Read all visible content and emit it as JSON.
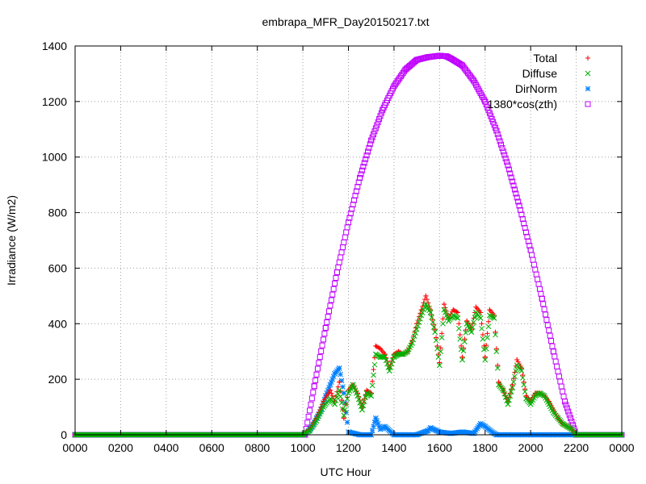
{
  "chart_data": {
    "type": "scatter",
    "title": "embrapa_MFR_Day20150217.txt",
    "xlabel": "UTC Hour",
    "ylabel": "Irradiance (W/m2)",
    "xlim": [
      0,
      24
    ],
    "ylim": [
      0,
      1400
    ],
    "x_ticks": [
      0,
      2,
      4,
      6,
      8,
      10,
      12,
      14,
      16,
      18,
      20,
      22,
      24
    ],
    "x_tick_labels": [
      "0000",
      "0200",
      "0400",
      "0600",
      "0800",
      "1000",
      "1200",
      "1400",
      "1600",
      "1800",
      "2000",
      "2200",
      "0000"
    ],
    "y_ticks": [
      0,
      200,
      400,
      600,
      800,
      1000,
      1200,
      1400
    ],
    "y_tick_labels": [
      "0",
      "200",
      "400",
      "600",
      "800",
      "1000",
      "1200",
      "1400"
    ],
    "grid": true,
    "legend_position": "top-right",
    "series": [
      {
        "name": "Total",
        "color": "#ff0000",
        "marker": "plus",
        "x": [
          0,
          10.0,
          10.3,
          10.6,
          10.9,
          11.2,
          11.4,
          11.6,
          11.8,
          12.0,
          12.2,
          12.4,
          12.6,
          12.8,
          13.0,
          13.2,
          13.4,
          13.6,
          13.8,
          14.0,
          14.2,
          14.4,
          14.6,
          14.8,
          15.0,
          15.2,
          15.4,
          15.6,
          15.8,
          16.0,
          16.2,
          16.4,
          16.6,
          16.8,
          17.0,
          17.2,
          17.4,
          17.6,
          17.8,
          18.0,
          18.2,
          18.4,
          18.6,
          18.8,
          19.0,
          19.2,
          19.4,
          19.6,
          19.8,
          20.0,
          20.2,
          20.4,
          20.6,
          20.8,
          21.0,
          21.2,
          21.4,
          21.6,
          21.8,
          22.0,
          22.2,
          24
        ],
        "y": [
          0,
          0,
          20,
          60,
          120,
          160,
          120,
          190,
          60,
          160,
          180,
          150,
          100,
          160,
          150,
          320,
          310,
          290,
          240,
          290,
          300,
          290,
          300,
          340,
          400,
          450,
          500,
          450,
          380,
          260,
          470,
          420,
          450,
          440,
          280,
          410,
          380,
          460,
          440,
          280,
          450,
          430,
          190,
          160,
          120,
          180,
          270,
          240,
          140,
          120,
          150,
          150,
          140,
          120,
          90,
          60,
          40,
          30,
          20,
          0,
          0,
          0
        ]
      },
      {
        "name": "Diffuse",
        "color": "#00b000",
        "marker": "cross",
        "x": [
          0,
          10.0,
          10.3,
          10.6,
          10.9,
          11.2,
          11.4,
          11.6,
          11.8,
          12.0,
          12.2,
          12.4,
          12.6,
          12.8,
          13.0,
          13.2,
          13.4,
          13.6,
          13.8,
          14.0,
          14.2,
          14.4,
          14.6,
          14.8,
          15.0,
          15.2,
          15.4,
          15.6,
          15.8,
          16.0,
          16.2,
          16.4,
          16.6,
          16.8,
          17.0,
          17.2,
          17.4,
          17.6,
          17.8,
          18.0,
          18.2,
          18.4,
          18.6,
          18.8,
          19.0,
          19.2,
          19.4,
          19.6,
          19.8,
          20.0,
          20.2,
          20.4,
          20.6,
          20.8,
          21.0,
          21.2,
          21.4,
          21.6,
          21.8,
          22.0,
          22.2,
          24
        ],
        "y": [
          0,
          0,
          15,
          50,
          100,
          130,
          110,
          160,
          70,
          150,
          180,
          140,
          90,
          150,
          140,
          290,
          280,
          280,
          230,
          280,
          290,
          290,
          300,
          330,
          380,
          430,
          470,
          440,
          370,
          250,
          450,
          410,
          430,
          420,
          270,
          400,
          370,
          440,
          420,
          270,
          430,
          420,
          180,
          160,
          110,
          170,
          250,
          230,
          130,
          110,
          140,
          150,
          140,
          110,
          80,
          60,
          40,
          30,
          20,
          0,
          0,
          0
        ]
      },
      {
        "name": "DirNorm",
        "color": "#0080ff",
        "marker": "star",
        "x": [
          0,
          10.0,
          10.2,
          10.4,
          10.6,
          10.8,
          11.0,
          11.2,
          11.4,
          11.6,
          11.8,
          12.0,
          12.5,
          13.0,
          13.2,
          13.4,
          13.6,
          14.0,
          14.5,
          15.0,
          15.5,
          15.6,
          16.0,
          16.5,
          17.0,
          17.5,
          17.8,
          18.0,
          18.3,
          18.5,
          19.0,
          20.0,
          21.0,
          22.0,
          24
        ],
        "y": [
          0,
          0,
          10,
          30,
          60,
          90,
          140,
          180,
          220,
          240,
          150,
          10,
          0,
          0,
          60,
          20,
          30,
          0,
          0,
          0,
          15,
          25,
          10,
          5,
          10,
          5,
          40,
          30,
          10,
          0,
          0,
          0,
          0,
          0,
          0
        ]
      },
      {
        "name": "1380*cos(zth)",
        "color": "#c000ff",
        "marker": "square",
        "x": [
          0,
          10.1,
          10.5,
          11.0,
          11.5,
          12.0,
          12.5,
          13.0,
          13.5,
          14.0,
          14.5,
          15.0,
          15.5,
          16.0,
          16.3,
          16.5,
          17.0,
          17.5,
          18.0,
          18.5,
          19.0,
          19.5,
          20.0,
          20.5,
          21.0,
          21.5,
          22.0,
          22.5,
          24
        ],
        "y": [
          0,
          0,
          175,
          385,
          585,
          765,
          925,
          1060,
          1170,
          1255,
          1315,
          1350,
          1360,
          1365,
          1363,
          1355,
          1330,
          1275,
          1200,
          1095,
          970,
          825,
          665,
          490,
          300,
          120,
          0,
          0,
          0
        ]
      }
    ]
  }
}
